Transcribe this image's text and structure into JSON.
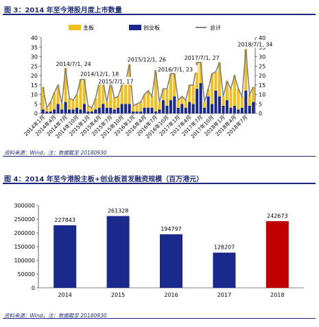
{
  "fig1": {
    "title": "图 3：2014 年至今港股月度上市数量",
    "source": "资料来源：Wind，注：数据截至 20180930"
  },
  "fig2": {
    "title": "图 4：2014 年至今港股主板+创业板首发融资规模（百万港元）",
    "source": "资料来源：Wind，注：数据截至 20180930"
  },
  "colors": {
    "main": "#f2c01e",
    "gem": "#1a2a8c",
    "total": "#808080",
    "bar2_default": "#1a2a8c",
    "bar2_highlight": "#c00000"
  },
  "chart_data": [
    {
      "type": "bar",
      "stacked": true,
      "legend": [
        "主板",
        "创业板",
        "总计"
      ],
      "x": [
        "2014年1月",
        "2014年2月",
        "2014年3月",
        "2014年4月",
        "2014年5月",
        "2014年6月",
        "2014年7月",
        "2014年8月",
        "2014年9月",
        "2014年10月",
        "2014年11月",
        "2014年12月",
        "2015年1月",
        "2015年2月",
        "2015年3月",
        "2015年4月",
        "2015年5月",
        "2015年6月",
        "2015年7月",
        "2015年8月",
        "2015年9月",
        "2015年10月",
        "2015年11月",
        "2015年12月",
        "2016年1月",
        "2016年2月",
        "2016年3月",
        "2016年4月",
        "2016年5月",
        "2016年6月",
        "2016年7月",
        "2016年8月",
        "2016年9月",
        "2016年10月",
        "2016年11月",
        "2016年12月",
        "2017年1月",
        "2017年2月",
        "2017年3月",
        "2017年4月",
        "2017年5月",
        "2017年6月",
        "2017年7月",
        "2017年8月",
        "2017年9月",
        "2017年10月",
        "2017年11月",
        "2017年12月",
        "2018年1月",
        "2018年2月",
        "2018年3月",
        "2018年4月",
        "2018年5月",
        "2018年6月",
        "2018年7月",
        "2018年8月",
        "2018年9月"
      ],
      "x_ticks": [
        "2014年1月",
        "2014年4月",
        "2014年7月",
        "2014年10月",
        "2015年1月",
        "2015年4月",
        "2015年7月",
        "2015年10月",
        "2016年1月",
        "2016年4月",
        "2016年7月",
        "2016年10月",
        "2017年1月",
        "2017年4月",
        "2017年7月",
        "2017年10月",
        "2018年1月",
        "2018年4月",
        "2018年7月"
      ],
      "series": [
        {
          "name": "主板",
          "values": [
            12,
            2,
            5,
            9,
            10,
            3,
            18,
            6,
            5,
            7,
            16,
            13,
            3,
            2,
            6,
            14,
            12,
            3,
            14,
            6,
            6,
            10,
            12,
            21,
            3,
            4,
            5,
            7,
            9,
            6,
            22,
            4,
            6,
            9,
            14,
            12,
            4,
            4,
            4,
            9,
            10,
            14,
            11,
            3,
            4,
            16,
            10,
            18,
            5,
            10,
            10,
            16,
            11,
            6,
            22,
            6,
            8
          ]
        },
        {
          "name": "创业板",
          "values": [
            2,
            1,
            1,
            2,
            5,
            2,
            6,
            2,
            2,
            3,
            2,
            5,
            1,
            1,
            2,
            3,
            5,
            3,
            3,
            2,
            3,
            5,
            5,
            5,
            1,
            1,
            1,
            3,
            3,
            3,
            1,
            2,
            7,
            4,
            7,
            9,
            3,
            5,
            3,
            6,
            5,
            13,
            16,
            3,
            9,
            5,
            12,
            9,
            4,
            7,
            3,
            4,
            2,
            3,
            12,
            4,
            6
          ]
        },
        {
          "name": "总计",
          "values": [
            14,
            3,
            6,
            11,
            15,
            5,
            24,
            8,
            7,
            10,
            18,
            18,
            4,
            3,
            8,
            17,
            17,
            6,
            17,
            8,
            9,
            15,
            17,
            26,
            4,
            5,
            6,
            10,
            12,
            9,
            23,
            6,
            13,
            13,
            21,
            21,
            7,
            9,
            7,
            15,
            15,
            27,
            27,
            6,
            13,
            21,
            22,
            27,
            9,
            17,
            13,
            20,
            13,
            9,
            34,
            10,
            14
          ]
        }
      ],
      "ylim_left": [
        0,
        40
      ],
      "yticks_left": [
        0,
        5,
        10,
        15,
        20,
        25,
        30,
        35,
        40
      ],
      "ylim_right": [
        0,
        40
      ],
      "yticks_right": [
        0,
        5,
        10,
        15,
        20,
        25,
        30,
        35,
        40
      ],
      "annotations": [
        {
          "label": "2014/7/1, 24",
          "x": "2014年7月",
          "y": 24
        },
        {
          "label": "2014/12/1, 18",
          "x": "2014年12月",
          "y": 18
        },
        {
          "label": "2015/7/1, 17",
          "x": "2015年7月",
          "y": 17
        },
        {
          "label": "2015/12/1, 26",
          "x": "2015年12月",
          "y": 26
        },
        {
          "label": "2016/7/1, 23",
          "x": "2016年7月",
          "y": 23
        },
        {
          "label": "2017/7/1, 27",
          "x": "2017年7月",
          "y": 27
        },
        {
          "label": "2018/7/1, 34",
          "x": "2018年7月",
          "y": 34
        }
      ],
      "legend_position": "top"
    },
    {
      "type": "bar",
      "categories": [
        "2014",
        "2015",
        "2016",
        "2017",
        "2018"
      ],
      "values": [
        227843,
        261328,
        194797,
        128207,
        242673
      ],
      "ylim": [
        0,
        300000
      ],
      "yticks": [
        0,
        50000,
        100000,
        150000,
        200000,
        250000,
        300000
      ],
      "data_labels": [
        "227843",
        "261328",
        "194797",
        "128207",
        "242673"
      ]
    }
  ]
}
